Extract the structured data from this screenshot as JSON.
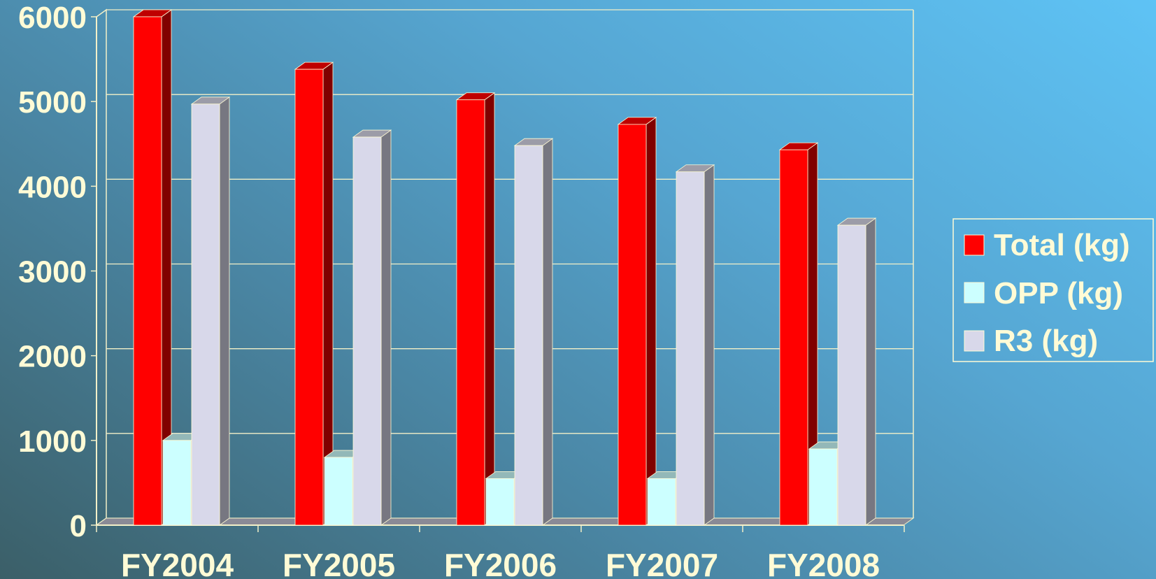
{
  "chart_data": {
    "type": "bar",
    "categories": [
      "FY2004",
      "FY2005",
      "FY2006",
      "FY2007",
      "FY2008"
    ],
    "series": [
      {
        "name": "Total (kg)",
        "values": [
          6000,
          5380,
          5020,
          4730,
          4430
        ],
        "color": "#ff0000"
      },
      {
        "name": "OPP (kg)",
        "values": [
          1000,
          800,
          550,
          550,
          900
        ],
        "color": "#ccffff"
      },
      {
        "name": "R3 (kg)",
        "values": [
          4970,
          4580,
          4480,
          4170,
          3540
        ],
        "color": "#d8d8ea"
      }
    ],
    "ylim": [
      0,
      6000
    ],
    "yticks": [
      "0",
      "1000",
      "2000",
      "3000",
      "4000",
      "5000",
      "6000"
    ],
    "grid": true,
    "legend_position": "right",
    "style": "3d-clustered-column"
  },
  "colors": {
    "text": "#fffbd6",
    "grid": "#f3f0c8"
  }
}
